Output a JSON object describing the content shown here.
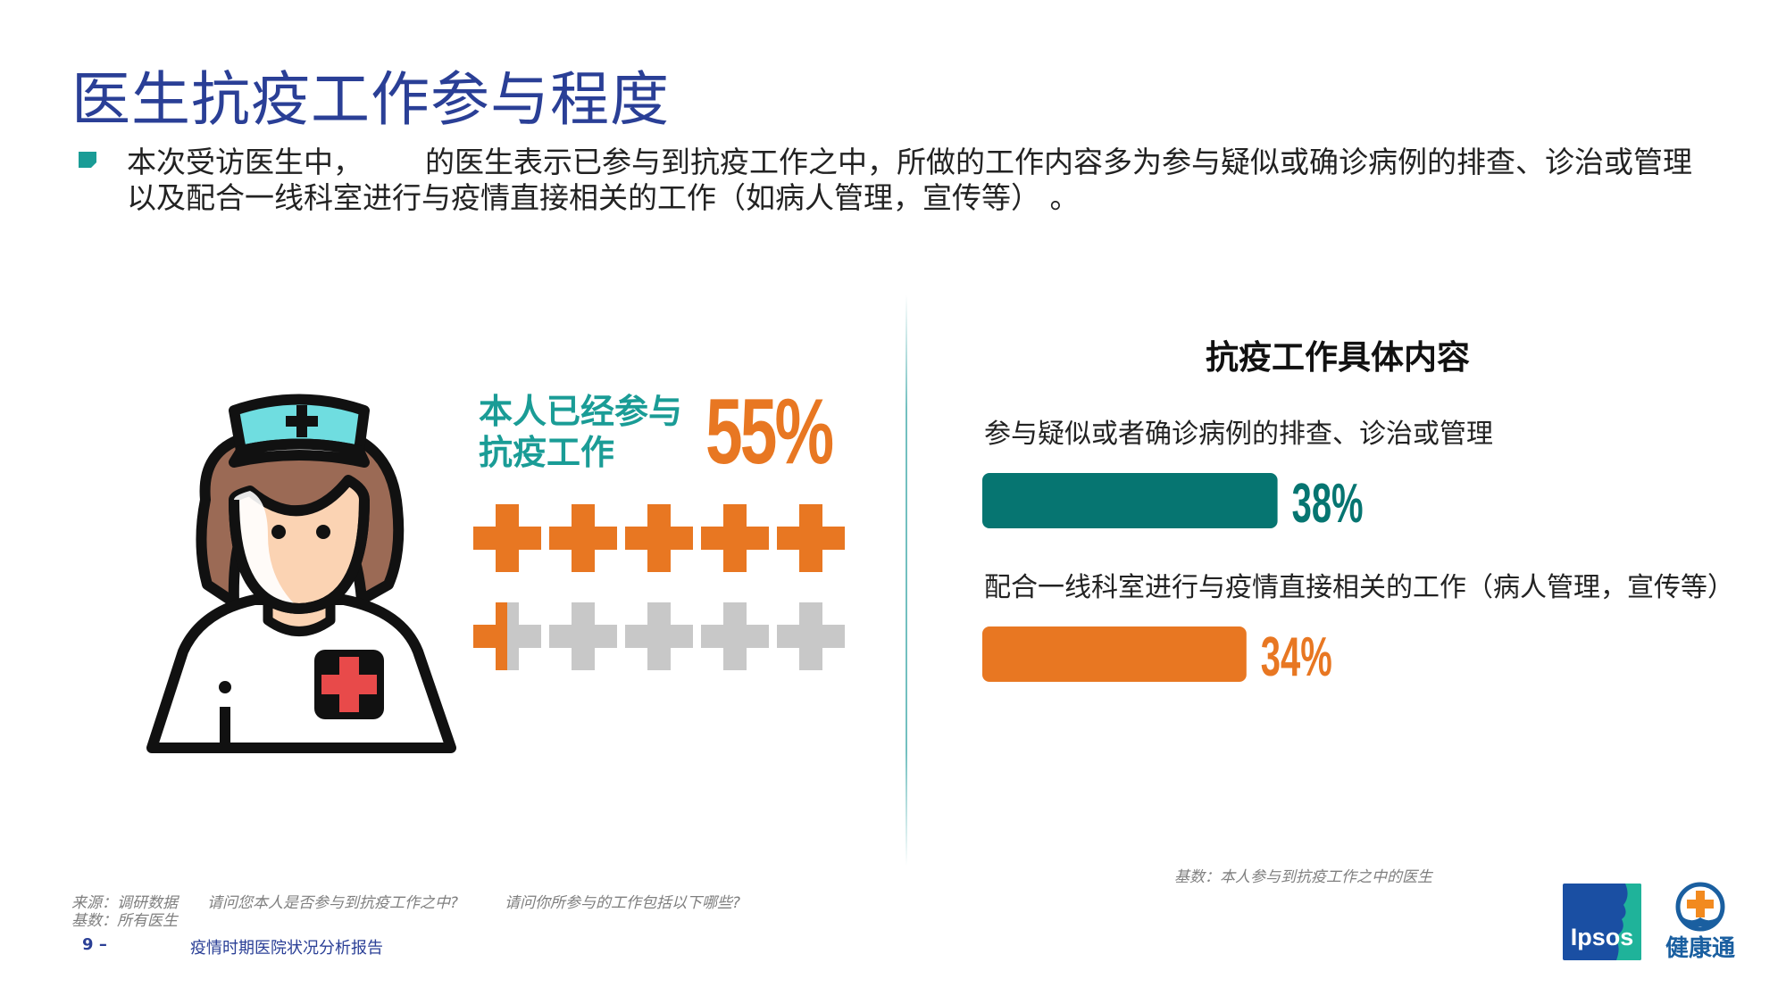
{
  "title": "医生抗疫工作参与程度",
  "bullet": {
    "line1_part1": "本次受访医生中，",
    "line1_part2": "的医生表示已参与到抗疫工作之中，所做的工作内容多为参与疑似或确诊病例的排查、诊治或管理",
    "line2": "以及配合一线科室进行与疫情直接相关的工作（如病人管理，宣传等）  。"
  },
  "stat": {
    "label_line1": "本人已经参与",
    "label_line2": "抗疫工作",
    "value": "55%",
    "icon_total": 10,
    "filled_fraction": 0.55
  },
  "chart_data": {
    "type": "bar",
    "title": "抗疫工作具体内容",
    "categories": [
      "参与疑似或者确诊病例的排查、诊治或管理",
      "配合一线科室进行与疫情直接相关的工作（病人管理，宣传等）"
    ],
    "values": [
      38,
      34
    ],
    "value_labels": [
      "38%",
      "34%"
    ],
    "colors": [
      "#067571",
      "#e87722"
    ],
    "orientation": "horizontal",
    "xlim": [
      0,
      100
    ]
  },
  "notes": {
    "base_right": "基数：本人参与到抗疫工作之中的医生",
    "source": "来源：调研数据",
    "base_left": "基数：所有医生",
    "question1": "请问您本人是否参与到抗疫工作之中?",
    "question2": "请问你所参与的工作包括以下哪些?"
  },
  "footer": {
    "page_number": "9",
    "dash": "–",
    "report_title": "疫情时期医院状况分析报告"
  },
  "logos": {
    "ipsos": "Ipsos",
    "jiankangtong": "健康通"
  },
  "colors": {
    "title": "#2a3f96",
    "teal": "#067571",
    "orange": "#e87722",
    "gray_icon": "#c8c8c8"
  },
  "icons": {
    "bullet": "bullet-square-icon",
    "nurse": "nurse-icon",
    "cross": "cross-icon"
  }
}
